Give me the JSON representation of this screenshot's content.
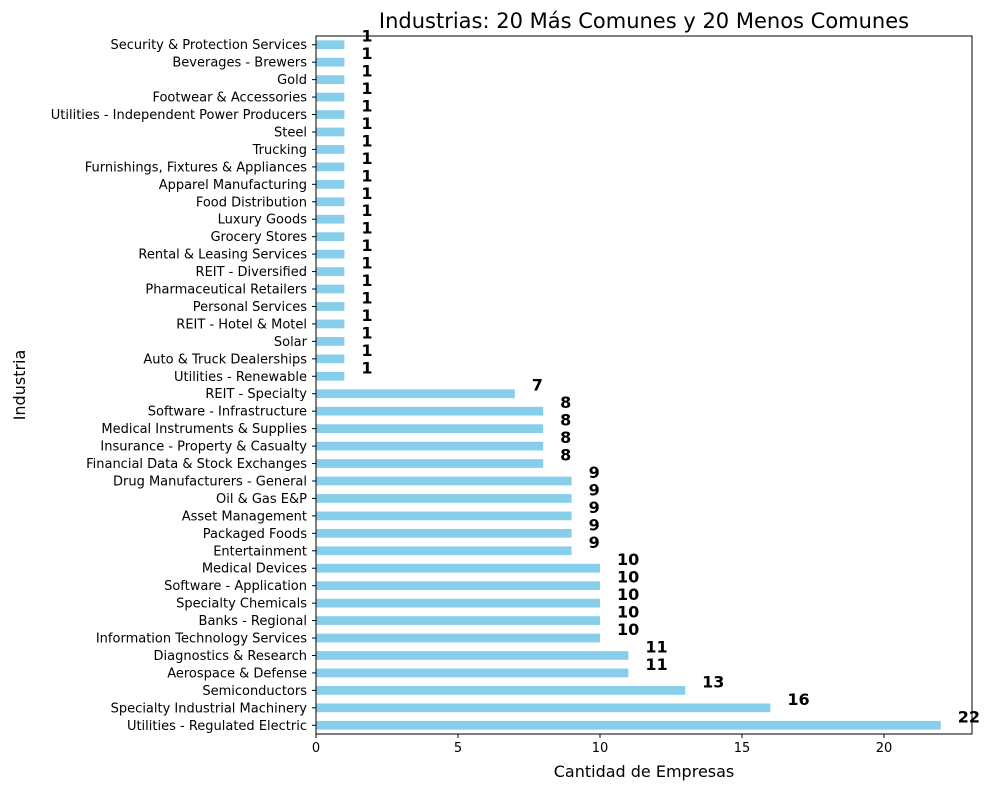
{
  "chart_data": {
    "type": "bar",
    "orientation": "horizontal",
    "title": "Industrias: 20 Más Comunes y 20 Menos Comunes",
    "xlabel": "Cantidad de Empresas",
    "ylabel": "Industria",
    "xlim": [
      0,
      23.1
    ],
    "xticks": [
      0,
      5,
      10,
      15,
      20
    ],
    "grid": false,
    "bar_color": "#87ceeb",
    "categories": [
      "Utilities - Regulated Electric",
      "Specialty Industrial Machinery",
      "Semiconductors",
      "Aerospace & Defense",
      "Diagnostics & Research",
      "Information Technology Services",
      "Banks - Regional",
      "Specialty Chemicals",
      "Software - Application",
      "Medical Devices",
      "Entertainment",
      "Packaged Foods",
      "Asset Management",
      "Oil & Gas E&P",
      "Drug Manufacturers - General",
      "Financial Data & Stock Exchanges",
      "Insurance - Property & Casualty",
      "Medical Instruments & Supplies",
      "Software - Infrastructure",
      "REIT - Specialty",
      "Utilities - Renewable",
      "Auto & Truck Dealerships",
      "Solar",
      "REIT - Hotel & Motel",
      "Personal Services",
      "Pharmaceutical Retailers",
      "REIT - Diversified",
      "Rental & Leasing Services",
      "Grocery Stores",
      "Luxury Goods",
      "Food Distribution",
      "Apparel Manufacturing",
      "Furnishings, Fixtures & Appliances",
      "Trucking",
      "Steel",
      "Utilities - Independent Power Producers",
      "Footwear & Accessories",
      "Gold",
      "Beverages - Brewers",
      "Security & Protection Services"
    ],
    "values": [
      22,
      16,
      13,
      11,
      11,
      10,
      10,
      10,
      10,
      10,
      9,
      9,
      9,
      9,
      9,
      8,
      8,
      8,
      8,
      7,
      1,
      1,
      1,
      1,
      1,
      1,
      1,
      1,
      1,
      1,
      1,
      1,
      1,
      1,
      1,
      1,
      1,
      1,
      1,
      1
    ]
  }
}
